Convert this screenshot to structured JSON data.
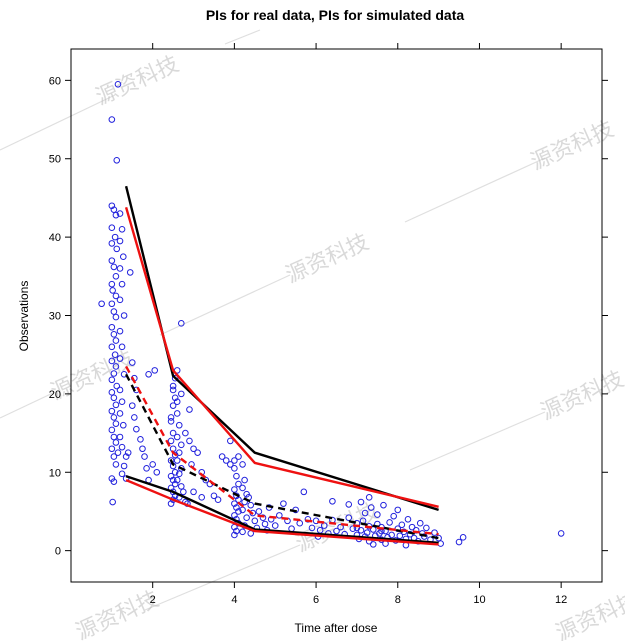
{
  "chart_data": {
    "type": "scatter",
    "title": "PIs for real data, PIs for simulated data",
    "xlabel": "Time after dose",
    "ylabel": "Observations",
    "xlim": [
      0,
      13
    ],
    "ylim": [
      -4,
      64
    ],
    "x_ticks": [
      2,
      4,
      6,
      8,
      10,
      12
    ],
    "y_ticks": [
      0,
      10,
      20,
      30,
      40,
      50,
      60
    ],
    "grid": false,
    "legend": "none",
    "watermark_text": "源资科技",
    "colors": {
      "points": "#2222dd",
      "real_pi": "#000000",
      "sim_pi": "#ee1111"
    },
    "points": [
      [
        1.0,
        44.0
      ],
      [
        1.05,
        43.5
      ],
      [
        1.1,
        42.8
      ],
      [
        1.0,
        41.2
      ],
      [
        1.08,
        40.0
      ],
      [
        1.0,
        39.2
      ],
      [
        1.12,
        38.5
      ],
      [
        1.0,
        37.0
      ],
      [
        1.05,
        36.2
      ],
      [
        1.1,
        35.0
      ],
      [
        1.0,
        34.0
      ],
      [
        1.02,
        33.2
      ],
      [
        1.1,
        32.5
      ],
      [
        1.0,
        31.5
      ],
      [
        1.05,
        30.5
      ],
      [
        1.1,
        29.8
      ],
      [
        1.0,
        28.5
      ],
      [
        1.05,
        27.6
      ],
      [
        1.1,
        26.8
      ],
      [
        1.0,
        26.0
      ],
      [
        1.08,
        25.0
      ],
      [
        1.0,
        24.2
      ],
      [
        1.1,
        23.5
      ],
      [
        1.05,
        22.6
      ],
      [
        1.0,
        21.8
      ],
      [
        1.12,
        21.0
      ],
      [
        1.0,
        20.2
      ],
      [
        1.05,
        19.5
      ],
      [
        1.1,
        18.6
      ],
      [
        1.0,
        17.8
      ],
      [
        1.05,
        17.0
      ],
      [
        1.1,
        16.2
      ],
      [
        1.0,
        15.4
      ],
      [
        1.05,
        14.5
      ],
      [
        1.1,
        13.8
      ],
      [
        1.0,
        13.0
      ],
      [
        1.05,
        12.0
      ],
      [
        1.1,
        11.0
      ],
      [
        1.0,
        9.2
      ],
      [
        1.05,
        8.8
      ],
      [
        1.02,
        6.2
      ],
      [
        1.15,
        12.5
      ],
      [
        1.15,
        59.5
      ],
      [
        1.0,
        55.0
      ],
      [
        1.12,
        49.8
      ],
      [
        1.2,
        43.0
      ],
      [
        1.25,
        41.0
      ],
      [
        1.2,
        39.5
      ],
      [
        1.28,
        37.5
      ],
      [
        1.2,
        36.0
      ],
      [
        1.25,
        34.0
      ],
      [
        1.2,
        32.0
      ],
      [
        1.3,
        30.0
      ],
      [
        1.2,
        28.0
      ],
      [
        1.25,
        26.0
      ],
      [
        1.2,
        24.5
      ],
      [
        1.3,
        22.5
      ],
      [
        1.2,
        20.5
      ],
      [
        1.25,
        19.0
      ],
      [
        1.2,
        17.5
      ],
      [
        1.28,
        16.0
      ],
      [
        1.2,
        14.5
      ],
      [
        1.25,
        13.2
      ],
      [
        1.35,
        12.0
      ],
      [
        1.3,
        10.8
      ],
      [
        1.25,
        9.8
      ],
      [
        1.35,
        9.2
      ],
      [
        1.4,
        12.5
      ],
      [
        1.45,
        35.5
      ],
      [
        1.5,
        24.0
      ],
      [
        1.55,
        22.0
      ],
      [
        1.6,
        20.5
      ],
      [
        1.5,
        18.5
      ],
      [
        1.55,
        17.0
      ],
      [
        1.6,
        15.5
      ],
      [
        1.7,
        14.2
      ],
      [
        1.75,
        13.0
      ],
      [
        1.8,
        12.0
      ],
      [
        1.85,
        10.5
      ],
      [
        1.9,
        9.0
      ],
      [
        2.0,
        11.0
      ],
      [
        2.1,
        10.0
      ],
      [
        0.75,
        31.5
      ],
      [
        1.9,
        22.5
      ],
      [
        2.05,
        23.0
      ],
      [
        2.45,
        16.5
      ],
      [
        2.5,
        15.0
      ],
      [
        2.45,
        14.0
      ],
      [
        2.5,
        13.0
      ],
      [
        2.55,
        12.2
      ],
      [
        2.45,
        11.5
      ],
      [
        2.5,
        10.8
      ],
      [
        2.55,
        10.0
      ],
      [
        2.45,
        9.5
      ],
      [
        2.5,
        9.0
      ],
      [
        2.55,
        8.5
      ],
      [
        2.45,
        8.0
      ],
      [
        2.5,
        7.5
      ],
      [
        2.55,
        7.0
      ],
      [
        2.5,
        6.5
      ],
      [
        2.45,
        6.0
      ],
      [
        2.6,
        17.5
      ],
      [
        2.65,
        16.0
      ],
      [
        2.6,
        14.5
      ],
      [
        2.7,
        13.5
      ],
      [
        2.65,
        12.5
      ],
      [
        2.6,
        11.5
      ],
      [
        2.7,
        10.5
      ],
      [
        2.65,
        9.8
      ],
      [
        2.6,
        9.0
      ],
      [
        2.7,
        8.2
      ],
      [
        2.75,
        7.5
      ],
      [
        2.65,
        6.8
      ],
      [
        2.8,
        6.2
      ],
      [
        2.5,
        18.5
      ],
      [
        2.55,
        19.5
      ],
      [
        2.5,
        20.5
      ],
      [
        2.55,
        22.0
      ],
      [
        2.6,
        23.0
      ],
      [
        2.5,
        21.0
      ],
      [
        2.45,
        17.0
      ],
      [
        2.6,
        19.0
      ],
      [
        2.7,
        20.0
      ],
      [
        2.8,
        15.0
      ],
      [
        2.9,
        14.0
      ],
      [
        3.0,
        13.0
      ],
      [
        3.1,
        12.5
      ],
      [
        2.95,
        11.0
      ],
      [
        3.2,
        10.0
      ],
      [
        3.3,
        9.0
      ],
      [
        3.4,
        8.5
      ],
      [
        3.0,
        7.5
      ],
      [
        2.85,
        6.0
      ],
      [
        3.5,
        7.0
      ],
      [
        3.6,
        6.5
      ],
      [
        3.7,
        12.0
      ],
      [
        3.8,
        11.5
      ],
      [
        3.9,
        14.0
      ],
      [
        2.9,
        18.0
      ],
      [
        2.7,
        29.0
      ],
      [
        3.2,
        6.8
      ],
      [
        4.0,
        10.5
      ],
      [
        4.05,
        9.5
      ],
      [
        4.1,
        8.5
      ],
      [
        4.0,
        7.8
      ],
      [
        4.05,
        7.0
      ],
      [
        4.1,
        6.5
      ],
      [
        4.0,
        6.0
      ],
      [
        4.05,
        5.5
      ],
      [
        4.1,
        5.0
      ],
      [
        4.0,
        4.5
      ],
      [
        4.05,
        4.0
      ],
      [
        4.1,
        3.5
      ],
      [
        4.0,
        3.0
      ],
      [
        4.05,
        2.5
      ],
      [
        4.0,
        2.0
      ],
      [
        4.2,
        11.0
      ],
      [
        4.25,
        9.0
      ],
      [
        4.2,
        8.0
      ],
      [
        4.3,
        7.2
      ],
      [
        4.25,
        6.2
      ],
      [
        4.2,
        5.2
      ],
      [
        4.3,
        4.2
      ],
      [
        4.25,
        3.2
      ],
      [
        4.2,
        2.4
      ],
      [
        4.35,
        6.8
      ],
      [
        4.4,
        5.8
      ],
      [
        4.45,
        4.8
      ],
      [
        4.5,
        3.8
      ],
      [
        4.55,
        2.9
      ],
      [
        4.4,
        2.2
      ],
      [
        4.6,
        5.0
      ],
      [
        4.7,
        4.2
      ],
      [
        4.75,
        3.4
      ],
      [
        4.8,
        2.6
      ],
      [
        4.85,
        5.5
      ],
      [
        4.9,
        4.0
      ],
      [
        5.0,
        3.2
      ],
      [
        5.1,
        4.5
      ],
      [
        5.2,
        6.0
      ],
      [
        5.3,
        3.8
      ],
      [
        5.4,
        2.8
      ],
      [
        5.5,
        5.2
      ],
      [
        5.6,
        3.5
      ],
      [
        5.7,
        7.5
      ],
      [
        5.8,
        4.0
      ],
      [
        4.1,
        12.0
      ],
      [
        4.0,
        11.5
      ],
      [
        3.9,
        11.0
      ],
      [
        6.0,
        3.8
      ],
      [
        6.1,
        2.6
      ],
      [
        6.2,
        3.2
      ],
      [
        6.3,
        2.2
      ],
      [
        6.4,
        3.9
      ],
      [
        6.5,
        2.5
      ],
      [
        6.6,
        3.0
      ],
      [
        6.7,
        2.1
      ],
      [
        6.8,
        4.2
      ],
      [
        6.9,
        2.8
      ],
      [
        7.0,
        3.5
      ],
      [
        7.0,
        2.0
      ],
      [
        7.05,
        1.5
      ],
      [
        7.1,
        2.6
      ],
      [
        7.15,
        3.8
      ],
      [
        7.2,
        4.8
      ],
      [
        7.2,
        1.8
      ],
      [
        7.25,
        2.3
      ],
      [
        7.3,
        3.1
      ],
      [
        7.3,
        1.2
      ],
      [
        7.35,
        5.5
      ],
      [
        7.4,
        2.7
      ],
      [
        7.45,
        1.9
      ],
      [
        7.5,
        3.4
      ],
      [
        7.5,
        4.6
      ],
      [
        7.55,
        2.2
      ],
      [
        7.6,
        1.4
      ],
      [
        7.6,
        3.0
      ],
      [
        7.65,
        5.8
      ],
      [
        7.7,
        2.5
      ],
      [
        7.75,
        1.7
      ],
      [
        7.8,
        3.6
      ],
      [
        7.85,
        2.0
      ],
      [
        7.9,
        4.4
      ],
      [
        7.95,
        1.3
      ],
      [
        8.0,
        2.8
      ],
      [
        8.0,
        5.2
      ],
      [
        8.05,
        1.9
      ],
      [
        8.1,
        3.3
      ],
      [
        8.15,
        2.4
      ],
      [
        8.2,
        1.5
      ],
      [
        8.25,
        4.0
      ],
      [
        8.3,
        2.1
      ],
      [
        8.35,
        3.0
      ],
      [
        8.4,
        1.6
      ],
      [
        8.45,
        2.6
      ],
      [
        8.5,
        1.2
      ],
      [
        8.55,
        3.5
      ],
      [
        8.6,
        2.2
      ],
      [
        8.65,
        1.8
      ],
      [
        8.7,
        2.9
      ],
      [
        8.8,
        1.4
      ],
      [
        8.9,
        2.3
      ],
      [
        9.0,
        1.6
      ],
      [
        9.05,
        0.9
      ],
      [
        7.1,
        6.2
      ],
      [
        7.3,
        6.8
      ],
      [
        7.4,
        0.8
      ],
      [
        7.7,
        0.9
      ],
      [
        8.2,
        0.7
      ],
      [
        6.4,
        6.3
      ],
      [
        6.8,
        5.9
      ],
      [
        9.5,
        1.1
      ],
      [
        9.6,
        1.7
      ],
      [
        12.0,
        2.2
      ],
      [
        5.9,
        2.9
      ],
      [
        6.05,
        1.8
      ],
      [
        7.0,
        2.9
      ],
      [
        7.6,
        2.5
      ]
    ],
    "pi_real": {
      "x": [
        1.35,
        2.5,
        4.5,
        9.0
      ],
      "upper": [
        46.5,
        22.3,
        12.5,
        5.2
      ],
      "median": [
        22.5,
        11.0,
        6.0,
        1.6
      ],
      "lower": [
        9.5,
        7.5,
        2.7,
        1.0
      ]
    },
    "pi_sim": {
      "x": [
        1.35,
        2.5,
        4.5,
        9.0
      ],
      "upper": [
        43.8,
        23.0,
        11.2,
        5.6
      ],
      "median": [
        23.5,
        12.5,
        4.5,
        2.1
      ],
      "lower": [
        9.0,
        6.5,
        2.5,
        0.8
      ]
    }
  }
}
